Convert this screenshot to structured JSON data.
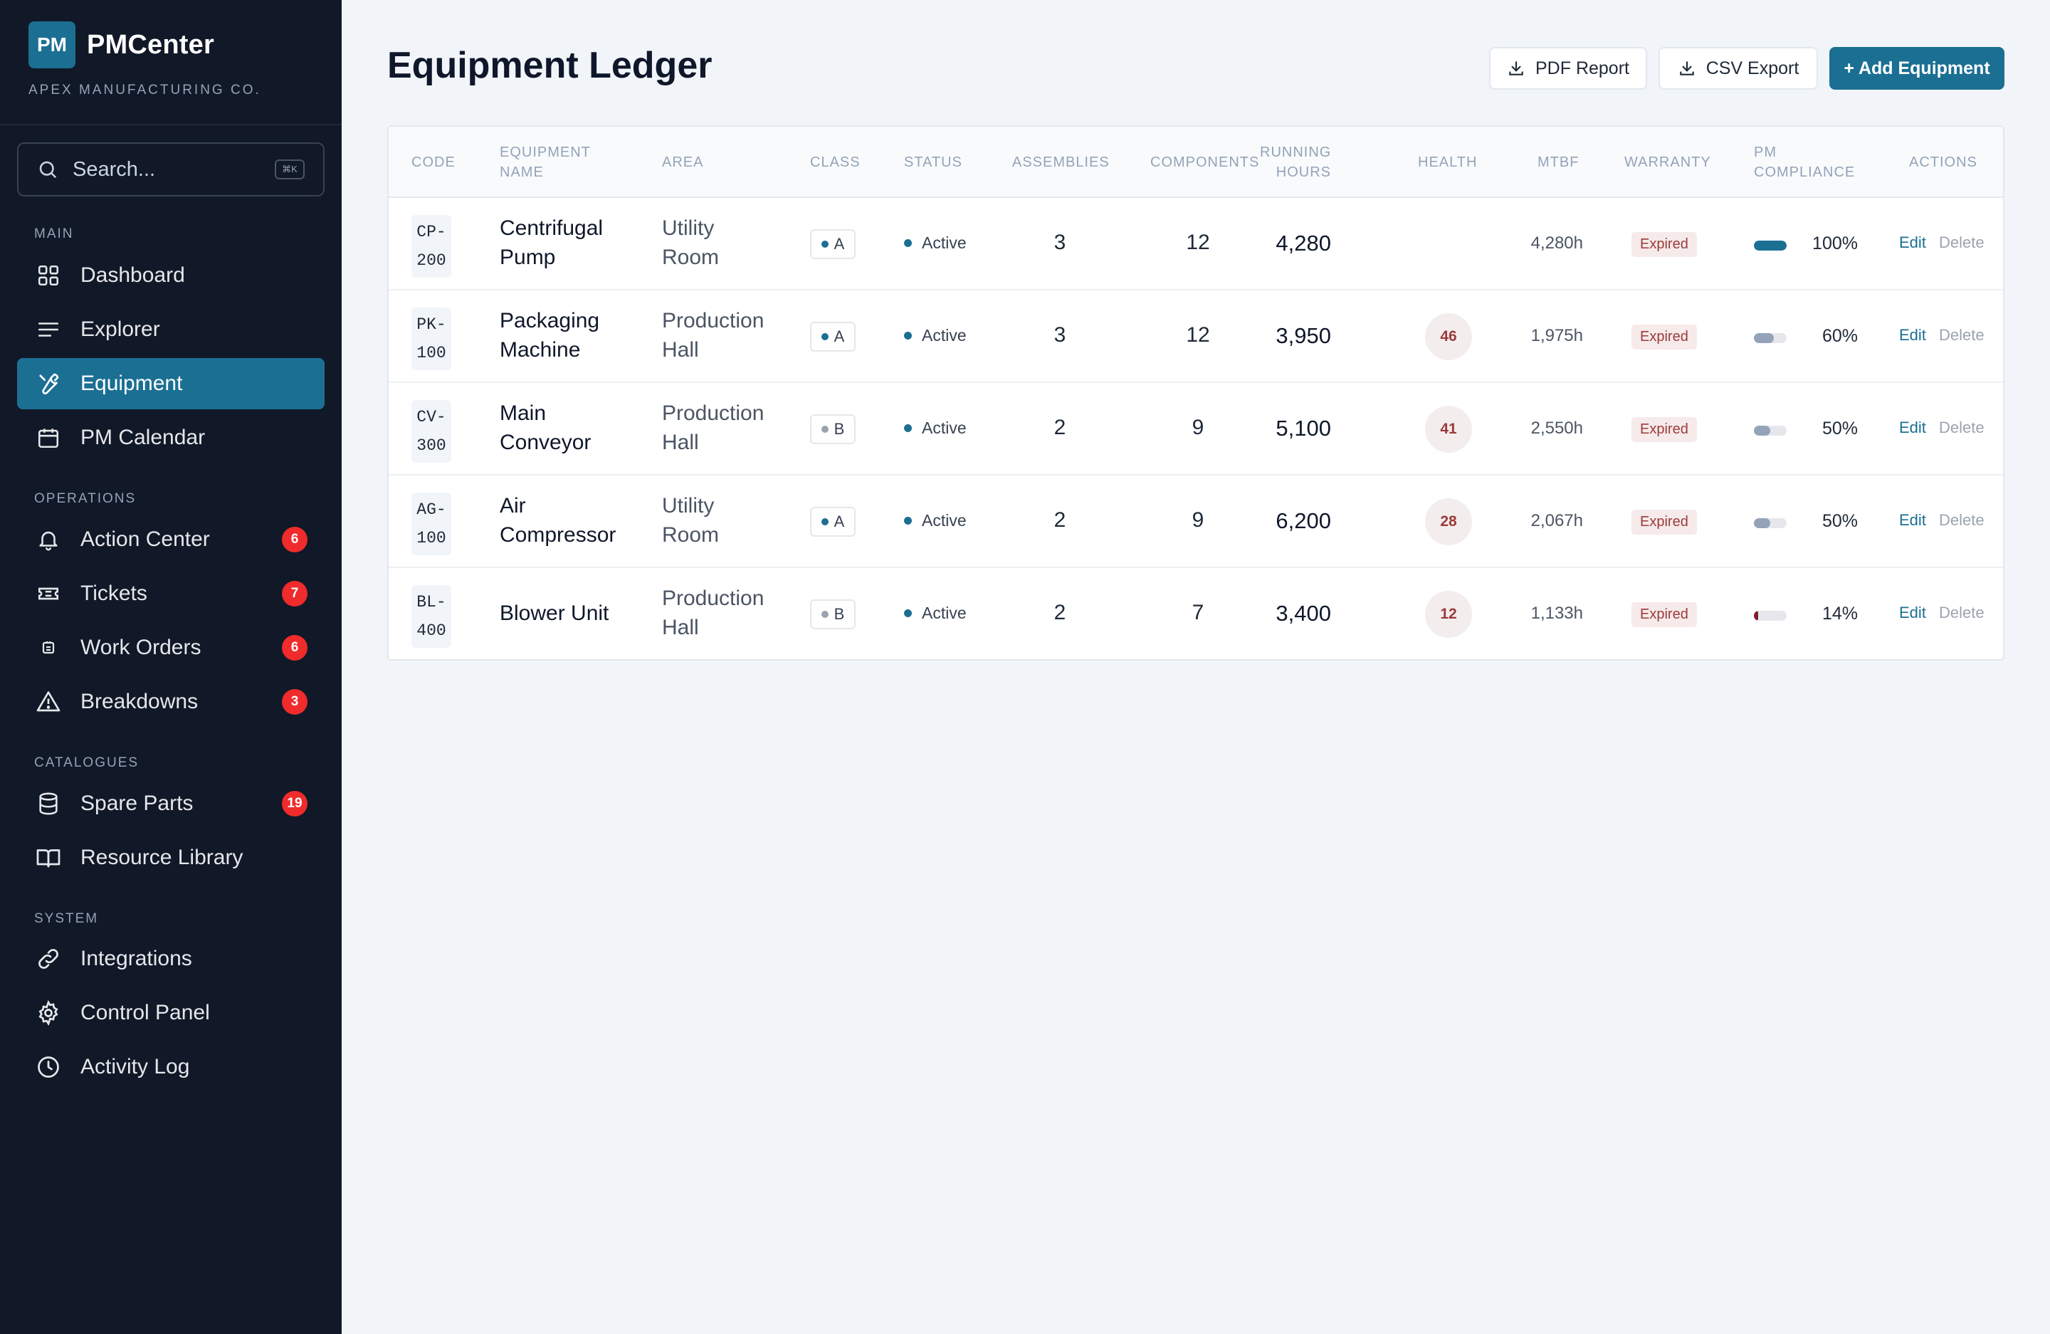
{
  "brand": {
    "logo_text": "PM",
    "name": "PMCenter",
    "company": "APEX MANUFACTURING CO."
  },
  "search": {
    "placeholder": "Search...",
    "shortcut": "⌘K"
  },
  "sections": {
    "main": "MAIN",
    "operations": "OPERATIONS",
    "catalogues": "CATALOGUES",
    "system": "SYSTEM"
  },
  "nav": {
    "dashboard": {
      "label": "Dashboard",
      "icon": "grid-icon"
    },
    "explorer": {
      "label": "Explorer",
      "icon": "list-icon"
    },
    "equipment": {
      "label": "Equipment",
      "icon": "wrench-icon",
      "active": true
    },
    "pm_calendar": {
      "label": "PM Calendar",
      "icon": "calendar-icon"
    },
    "action_center": {
      "label": "Action Center",
      "icon": "bell-icon",
      "badge": "6"
    },
    "tickets": {
      "label": "Tickets",
      "icon": "ticket-icon",
      "badge": "7"
    },
    "work_orders": {
      "label": "Work Orders",
      "icon": "work-order-icon",
      "badge": "6"
    },
    "breakdowns": {
      "label": "Breakdowns",
      "icon": "warning-icon",
      "badge": "3"
    },
    "spare_parts": {
      "label": "Spare Parts",
      "icon": "database-icon",
      "badge": "19"
    },
    "resource_library": {
      "label": "Resource Library",
      "icon": "book-icon"
    },
    "integrations": {
      "label": "Integrations",
      "icon": "link-icon"
    },
    "control_panel": {
      "label": "Control Panel",
      "icon": "gear-icon"
    },
    "activity_log": {
      "label": "Activity Log",
      "icon": "clock-icon"
    }
  },
  "page": {
    "title": "Equipment Ledger"
  },
  "toolbar": {
    "pdf_label": "PDF Report",
    "csv_label": "CSV Export",
    "add_label": "+ Add Equipment"
  },
  "table": {
    "headers": {
      "code": "CODE",
      "name_1": "EQUIPMENT",
      "name_2": "NAME",
      "area": "AREA",
      "class": "CLASS",
      "status": "STATUS",
      "assemblies": "ASSEMBLIES",
      "components": "COMPONENTS",
      "hours_1": "RUNNING",
      "hours_2": "HOURS",
      "health": "HEALTH",
      "mtbf": "MTBF",
      "warranty": "WARRANTY",
      "pm_1": "PM",
      "pm_2": "COMPLIANCE",
      "actions": "ACTIONS"
    },
    "rows": [
      {
        "code_1": "CP-",
        "code_2": "200",
        "name_1": "Centrifugal",
        "name_2": "Pump",
        "area_1": "Utility",
        "area_2": "Room",
        "class": "A",
        "status": "Active",
        "assemblies": "3",
        "components": "12",
        "hours": "4,280",
        "health": "",
        "mtbf": "4,280h",
        "warranty": "Expired",
        "pm_value": 100,
        "pm_label": "100%",
        "edit": "Edit",
        "delete": "Delete"
      },
      {
        "code_1": "PK-",
        "code_2": "100",
        "name_1": "Packaging",
        "name_2": "Machine",
        "area_1": "Production",
        "area_2": "Hall",
        "class": "A",
        "status": "Active",
        "assemblies": "3",
        "components": "12",
        "hours": "3,950",
        "health": "46",
        "mtbf": "1,975h",
        "warranty": "Expired",
        "pm_value": 60,
        "pm_label": "60%",
        "edit": "Edit",
        "delete": "Delete"
      },
      {
        "code_1": "CV-",
        "code_2": "300",
        "name_1": "Main",
        "name_2": "Conveyor",
        "area_1": "Production",
        "area_2": "Hall",
        "class": "B",
        "status": "Active",
        "assemblies": "2",
        "components": "9",
        "hours": "5,100",
        "health": "41",
        "mtbf": "2,550h",
        "warranty": "Expired",
        "pm_value": 50,
        "pm_label": "50%",
        "edit": "Edit",
        "delete": "Delete"
      },
      {
        "code_1": "AG-",
        "code_2": "100",
        "name_1": "Air",
        "name_2": "Compressor",
        "area_1": "Utility",
        "area_2": "Room",
        "class": "A",
        "status": "Active",
        "assemblies": "2",
        "components": "9",
        "hours": "6,200",
        "health": "28",
        "mtbf": "2,067h",
        "warranty": "Expired",
        "pm_value": 50,
        "pm_label": "50%",
        "edit": "Edit",
        "delete": "Delete"
      },
      {
        "code_1": "BL-",
        "code_2": "400",
        "name_1": "Blower Unit",
        "name_2": "",
        "area_1": "Production",
        "area_2": "Hall",
        "class": "B",
        "status": "Active",
        "assemblies": "2",
        "components": "7",
        "hours": "3,400",
        "health": "12",
        "mtbf": "1,133h",
        "warranty": "Expired",
        "pm_value": 14,
        "pm_label": "14%",
        "edit": "Edit",
        "delete": "Delete"
      }
    ]
  },
  "colors": {
    "accent": "#1b6f93",
    "sidebar": "#111827",
    "badge": "#ef2b2b",
    "expired": "#9b3b3b",
    "class_a_dot": "#1b6f93",
    "class_b_dot": "#9ca3af"
  }
}
